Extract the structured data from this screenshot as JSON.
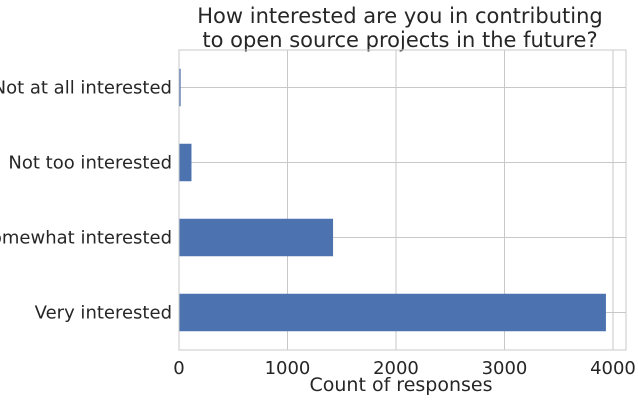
{
  "chart_data": {
    "type": "bar",
    "orientation": "horizontal",
    "title": "How interested are you in contributing\nto open source projects in the future?",
    "categories": [
      "Not at all interested",
      "Not too interested",
      "Somewhat interested",
      "Very interested"
    ],
    "values": [
      15,
      115,
      1420,
      3935
    ],
    "xlabel": "Count of responses",
    "ylabel": "",
    "xlim": [
      0,
      4120
    ],
    "xticks": [
      0,
      1000,
      2000,
      3000,
      4000
    ],
    "grid": true,
    "bar_color": "#4c72b0"
  }
}
